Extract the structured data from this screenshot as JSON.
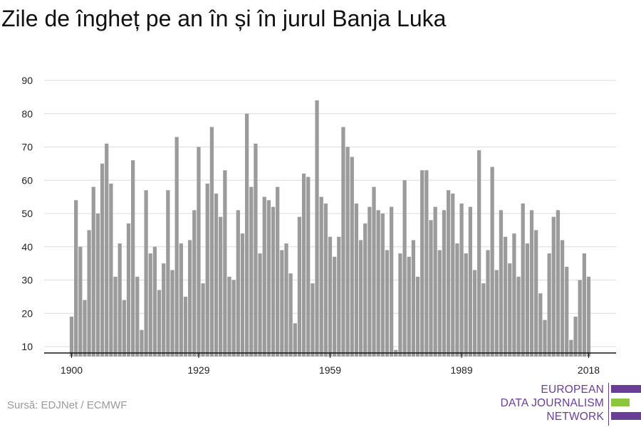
{
  "title": "Zile de îngheț pe an în și în jurul Banja Luka",
  "source": "Sursă: EDJNet / ECMWF",
  "logo": {
    "lines": [
      "EUROPEAN",
      "DATA JOURNALISM",
      "NETWORK"
    ],
    "colors": {
      "text": "#6a3d97",
      "accent": "#8cc63f"
    }
  },
  "chart_data": {
    "type": "bar",
    "title": "Zile de îngheț pe an în și în jurul Banja Luka",
    "xlabel": "",
    "ylabel": "",
    "x_start": 1900,
    "x_end": 2018,
    "x_ticks": [
      1900,
      1929,
      1959,
      1989,
      2018
    ],
    "y_ticks": [
      10,
      20,
      30,
      40,
      50,
      60,
      70,
      80,
      90
    ],
    "ylim": [
      7,
      90
    ],
    "grid": true,
    "bar_color": "#9b9b9b",
    "categories": [
      1900,
      1901,
      1902,
      1903,
      1904,
      1905,
      1906,
      1907,
      1908,
      1909,
      1910,
      1911,
      1912,
      1913,
      1914,
      1915,
      1916,
      1917,
      1918,
      1919,
      1920,
      1921,
      1922,
      1923,
      1924,
      1925,
      1926,
      1927,
      1928,
      1929,
      1930,
      1931,
      1932,
      1933,
      1934,
      1935,
      1936,
      1937,
      1938,
      1939,
      1940,
      1941,
      1942,
      1943,
      1944,
      1945,
      1946,
      1947,
      1948,
      1949,
      1950,
      1951,
      1952,
      1953,
      1954,
      1955,
      1956,
      1957,
      1958,
      1959,
      1960,
      1961,
      1962,
      1963,
      1964,
      1965,
      1966,
      1967,
      1968,
      1969,
      1970,
      1971,
      1972,
      1973,
      1974,
      1975,
      1976,
      1977,
      1978,
      1979,
      1980,
      1981,
      1982,
      1983,
      1984,
      1985,
      1986,
      1987,
      1988,
      1989,
      1990,
      1991,
      1992,
      1993,
      1994,
      1995,
      1996,
      1997,
      1998,
      1999,
      2000,
      2001,
      2002,
      2003,
      2004,
      2005,
      2006,
      2007,
      2008,
      2009,
      2010,
      2011,
      2012,
      2013,
      2014,
      2015,
      2016,
      2017,
      2018
    ],
    "values": [
      19,
      54,
      40,
      24,
      45,
      58,
      50,
      65,
      71,
      59,
      31,
      41,
      24,
      47,
      66,
      31,
      15,
      57,
      38,
      40,
      27,
      35,
      57,
      33,
      73,
      41,
      25,
      42,
      51,
      70,
      29,
      59,
      76,
      56,
      49,
      63,
      31,
      30,
      51,
      44,
      80,
      58,
      71,
      38,
      55,
      54,
      52,
      58,
      39,
      41,
      32,
      17,
      49,
      62,
      61,
      29,
      84,
      55,
      53,
      43,
      37,
      43,
      76,
      70,
      67,
      53,
      42,
      47,
      52,
      58,
      51,
      50,
      39,
      52,
      9,
      38,
      60,
      37,
      42,
      31,
      63,
      63,
      48,
      52,
      39,
      51,
      57,
      56,
      41,
      53,
      38,
      52,
      33,
      69,
      29,
      39,
      64,
      33,
      51,
      43,
      35,
      44,
      31,
      53,
      41,
      51,
      45,
      26,
      18,
      38,
      49,
      51,
      42,
      34,
      12,
      19,
      30,
      38,
      31
    ]
  }
}
